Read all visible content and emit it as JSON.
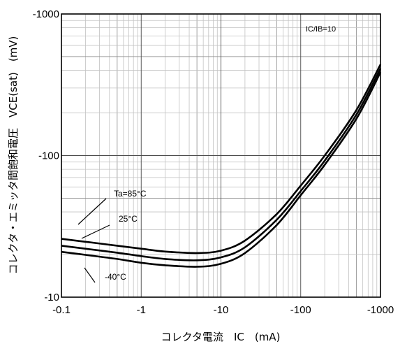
{
  "chart_data": {
    "type": "line",
    "title": "",
    "xlabel": "コレクタ電流　IC　(mA)",
    "ylabel": "コレクタ・エミッタ間飽和電圧　VCE(sat)　(mV)",
    "xscale": "log",
    "yscale": "log",
    "xlim": [
      -0.1,
      -1000
    ],
    "ylim": [
      -10,
      -1000
    ],
    "x_ticks": [
      "-0.1",
      "-1",
      "-10",
      "-100",
      "-1000"
    ],
    "y_ticks": [
      "-10",
      "-100",
      "-1000"
    ],
    "grid": true,
    "annotation": "IC/IB=10",
    "x": [
      -0.1,
      -0.2,
      -0.5,
      -1,
      -2,
      -5,
      -10,
      -20,
      -50,
      -100,
      -200,
      -500,
      -1000
    ],
    "series": [
      {
        "name": "Ta=85°C",
        "values": [
          -25.8,
          -24.6,
          -23.1,
          -22.0,
          -21.0,
          -20.5,
          -21.3,
          -25.1,
          -38.6,
          -61.4,
          -100,
          -210,
          -440
        ]
      },
      {
        "name": "25°C",
        "values": [
          -23.1,
          -22.0,
          -20.6,
          -19.5,
          -18.6,
          -18.2,
          -19.1,
          -22.5,
          -35.2,
          -56.2,
          -92,
          -195,
          -412
        ]
      },
      {
        "name": "-40°C",
        "values": [
          -20.9,
          -19.9,
          -18.6,
          -17.5,
          -16.8,
          -16.4,
          -17.2,
          -20.5,
          -32.3,
          -52.5,
          -86,
          -182,
          -388
        ]
      }
    ]
  }
}
